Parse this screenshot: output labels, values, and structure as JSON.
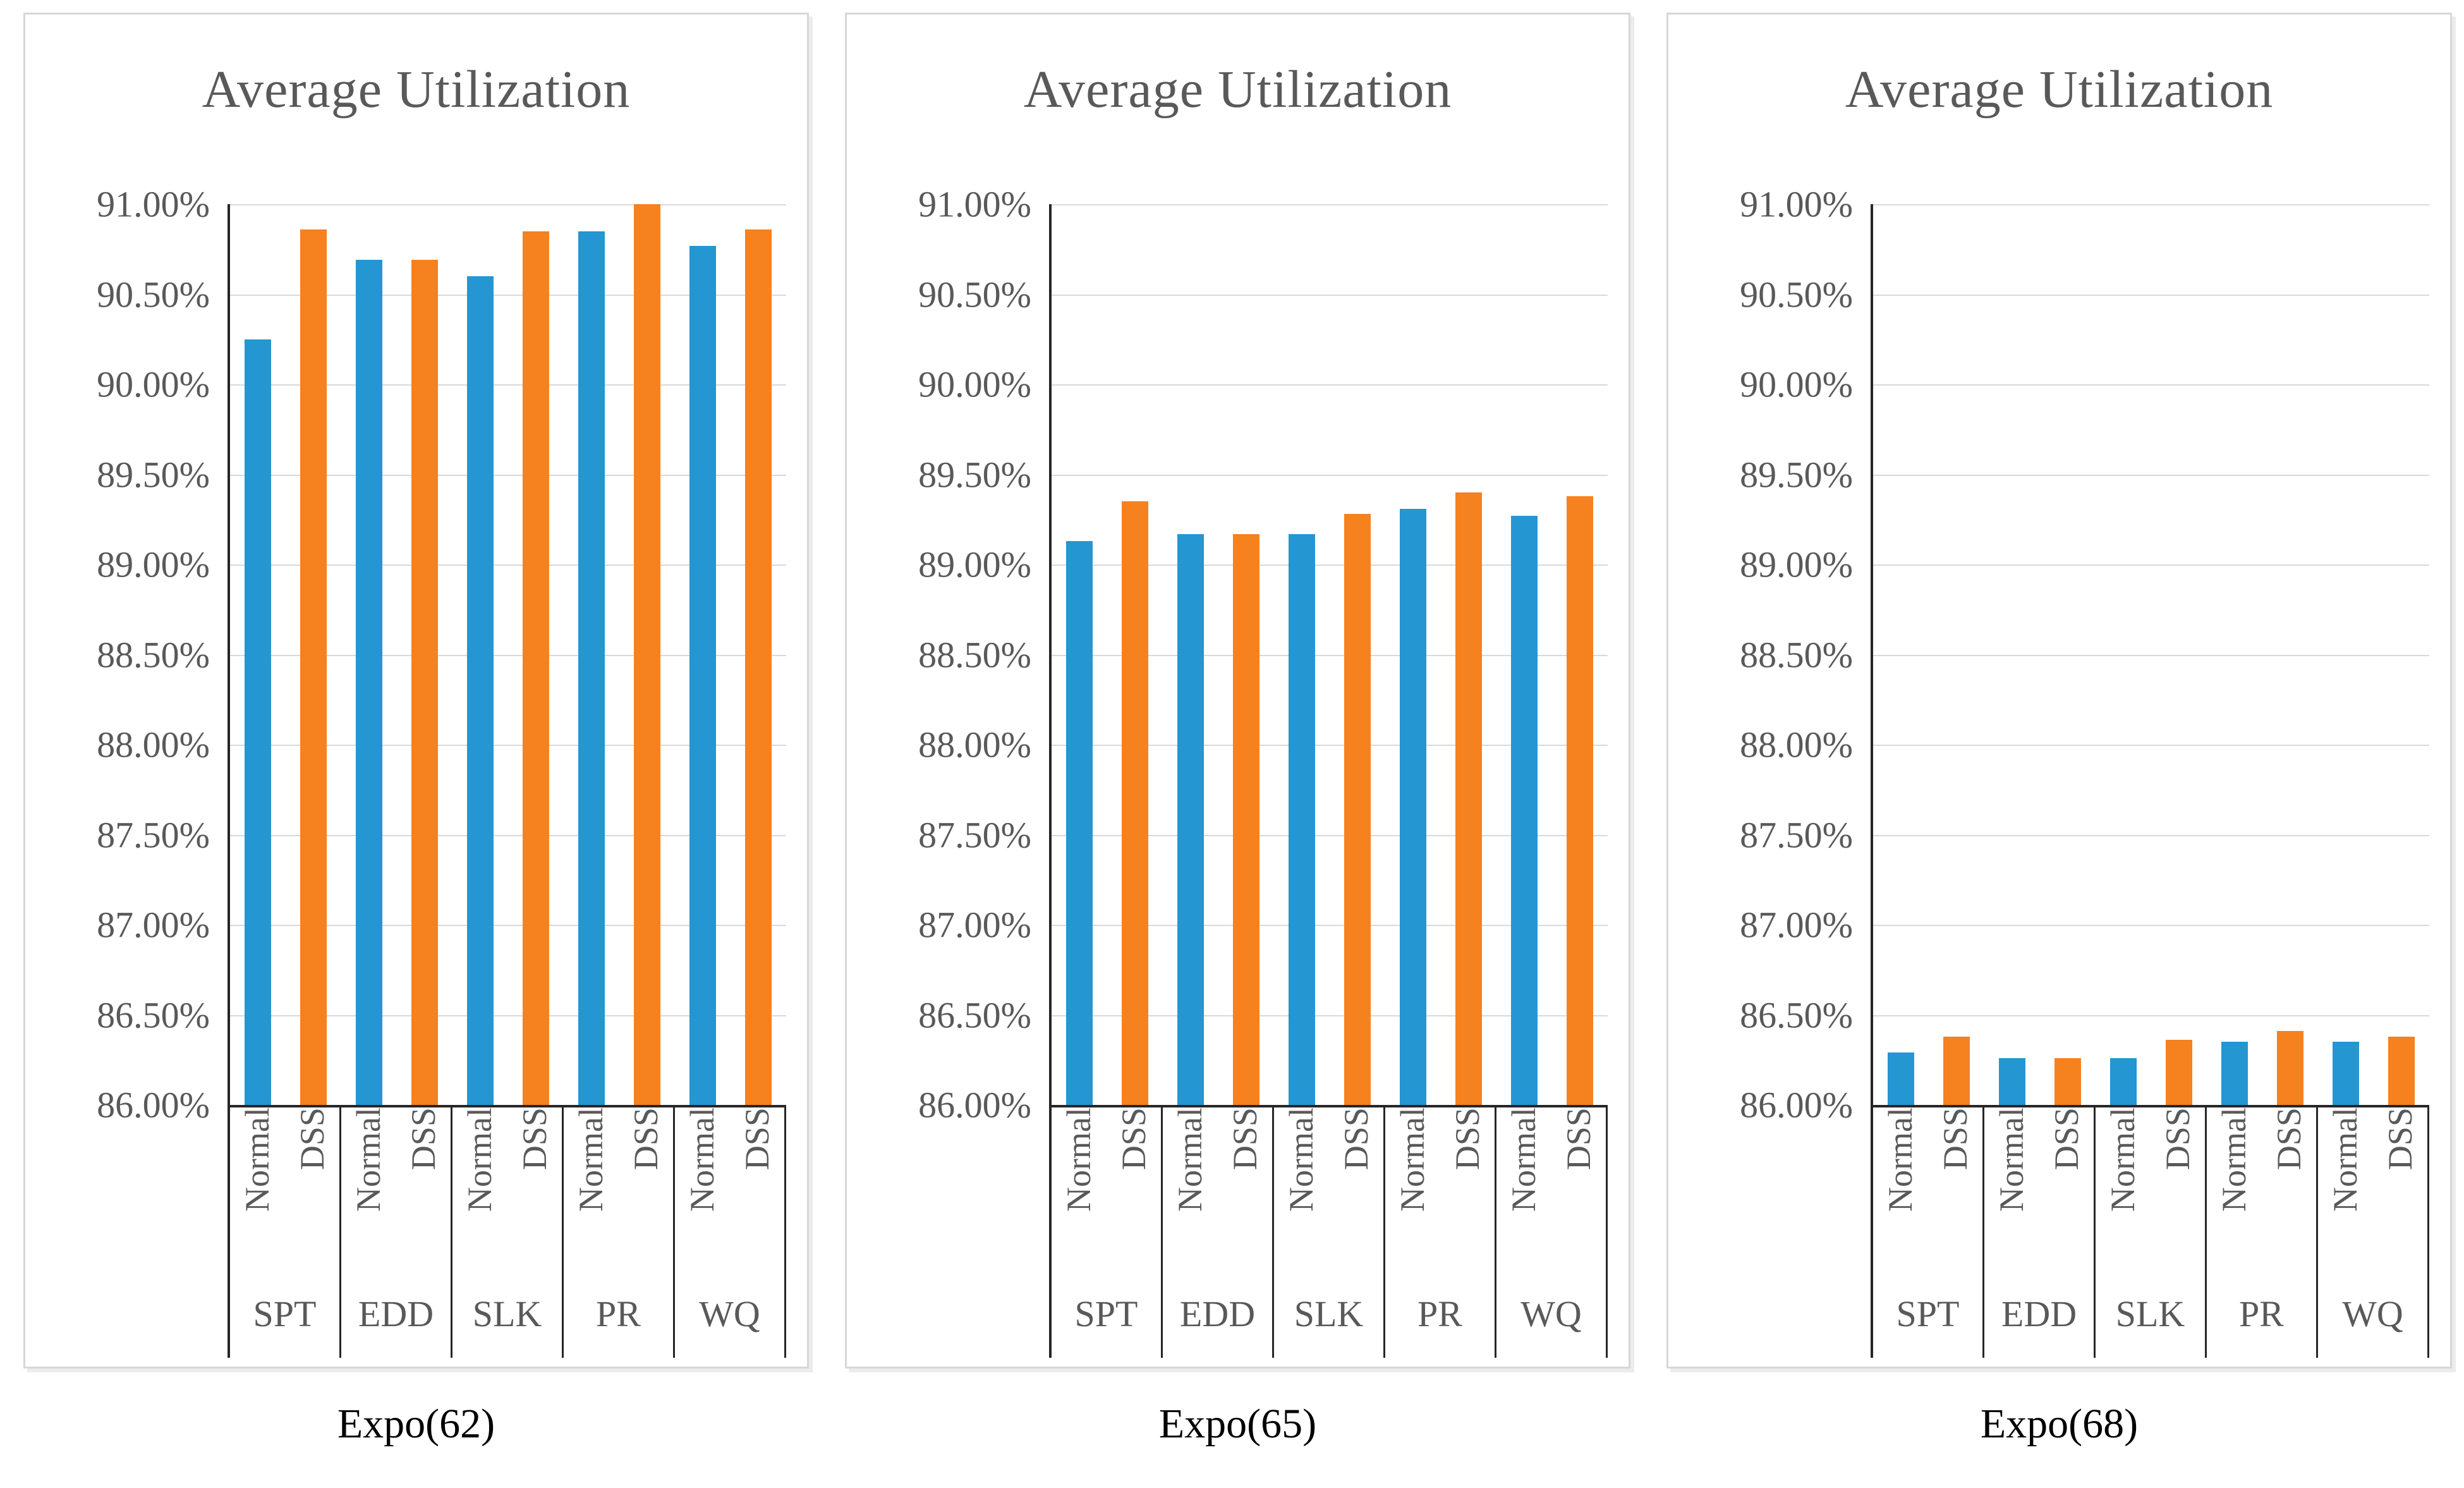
{
  "chart_data": [
    {
      "type": "bar",
      "title": "Average Utilization",
      "caption": "Expo(62)",
      "categories": [
        "SPT",
        "EDD",
        "SLK",
        "PR",
        "WQ"
      ],
      "series": [
        {
          "name": "Normal",
          "values": [
            90.25,
            90.69,
            90.6,
            90.85,
            90.77
          ]
        },
        {
          "name": "DSS",
          "values": [
            90.86,
            90.69,
            90.85,
            91.0,
            90.86
          ]
        }
      ],
      "ylabel": "",
      "xlabel": "",
      "ylim": [
        86.0,
        91.0
      ],
      "ytick_step": 0.5,
      "grid": true,
      "legend_position": "none"
    },
    {
      "type": "bar",
      "title": "Average Utilization",
      "caption": "Expo(65)",
      "categories": [
        "SPT",
        "EDD",
        "SLK",
        "PR",
        "WQ"
      ],
      "series": [
        {
          "name": "Normal",
          "values": [
            89.13,
            89.17,
            89.17,
            89.31,
            89.27
          ]
        },
        {
          "name": "DSS",
          "values": [
            89.35,
            89.17,
            89.28,
            89.4,
            89.38
          ]
        }
      ],
      "ylabel": "",
      "xlabel": "",
      "ylim": [
        86.0,
        91.0
      ],
      "ytick_step": 0.5,
      "grid": true,
      "legend_position": "none"
    },
    {
      "type": "bar",
      "title": "Average Utilization",
      "caption": "Expo(68)",
      "categories": [
        "SPT",
        "EDD",
        "SLK",
        "PR",
        "WQ"
      ],
      "series": [
        {
          "name": "Normal",
          "values": [
            86.29,
            86.26,
            86.26,
            86.35,
            86.35
          ]
        },
        {
          "name": "DSS",
          "values": [
            86.38,
            86.26,
            86.36,
            86.41,
            86.38
          ]
        }
      ],
      "ylabel": "",
      "xlabel": "",
      "ylim": [
        86.0,
        91.0
      ],
      "ytick_step": 0.5,
      "grid": true,
      "legend_position": "none"
    }
  ],
  "axis": {
    "tick_labels": [
      "91.00%",
      "90.50%",
      "90.00%",
      "89.50%",
      "89.00%",
      "88.50%",
      "88.00%",
      "87.50%",
      "87.00%",
      "86.50%",
      "86.00%"
    ]
  },
  "styles": {
    "normal_color": "#2496D2",
    "dss_color": "#F6811F",
    "gridline_color": "#d9d9d9",
    "axis_color": "#262626",
    "label_color": "#595959",
    "caption_color": "#000000"
  }
}
